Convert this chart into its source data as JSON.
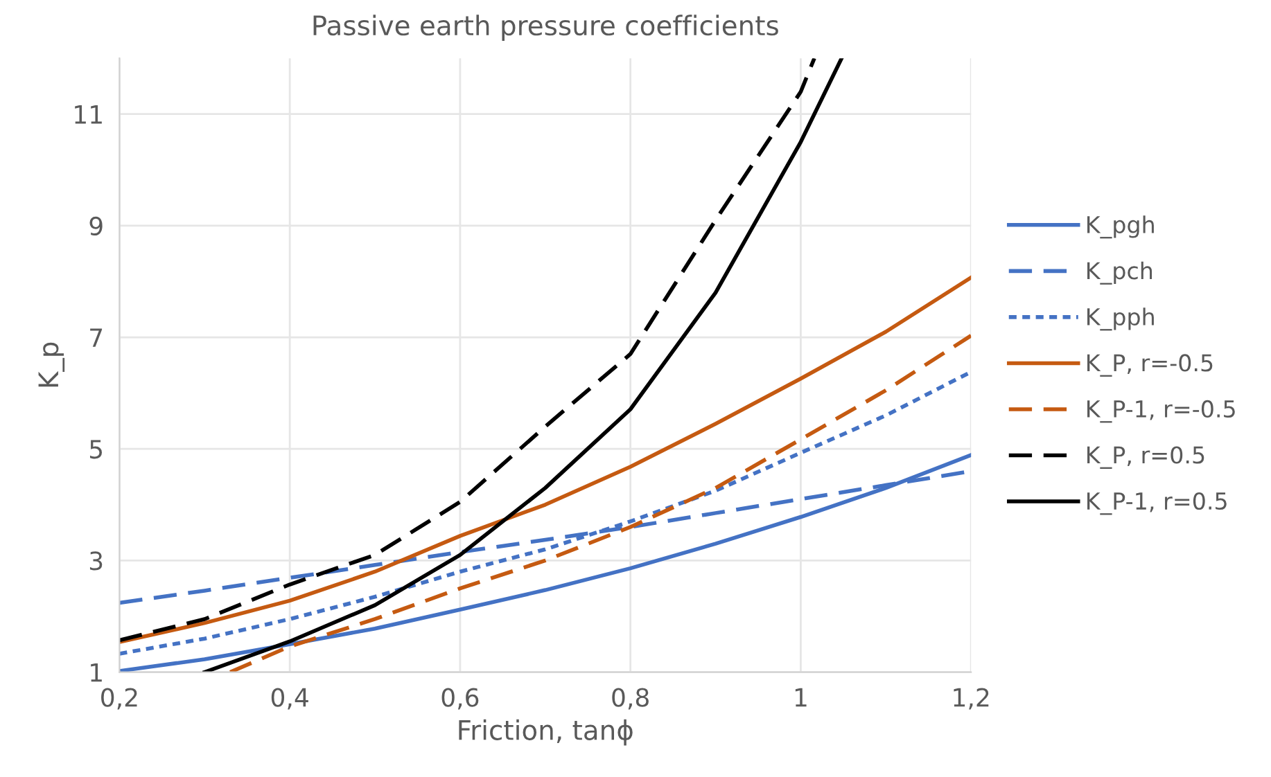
{
  "chart_data": {
    "type": "line",
    "title": "Passive earth pressure coefficients",
    "xlabel": "Friction, tanϕ",
    "ylabel": "K_p",
    "xlim": [
      0.2,
      1.2
    ],
    "xticks": [
      {
        "value": 0.2,
        "label": "0,2"
      },
      {
        "value": 0.4,
        "label": "0,4"
      },
      {
        "value": 0.6,
        "label": "0,6"
      },
      {
        "value": 0.8,
        "label": "0,8"
      },
      1,
      {
        "value": 1.2,
        "label": "1,2"
      }
    ],
    "ylim": [
      1,
      12
    ],
    "yticks": [
      1,
      3,
      5,
      7,
      9,
      11
    ],
    "grid": true,
    "legend": "right",
    "marker": "none",
    "series": [
      {
        "name": "K_pgh",
        "color": "#4472c4",
        "line_style": "solid",
        "x": [
          0.2,
          0.3,
          0.4,
          0.5,
          0.6,
          0.7,
          0.8,
          0.9,
          1.0,
          1.1,
          1.2
        ],
        "values": [
          1.02,
          1.23,
          1.5,
          1.78,
          2.12,
          2.47,
          2.86,
          3.3,
          3.78,
          4.3,
          4.89
        ]
      },
      {
        "name": "K_pch",
        "color": "#4472c4",
        "line_style": "dashed",
        "x": [
          0.2,
          0.3,
          0.4,
          0.5,
          0.6,
          0.7,
          0.8,
          0.9,
          1.0,
          1.1,
          1.2
        ],
        "values": [
          2.24,
          2.46,
          2.69,
          2.92,
          3.15,
          3.37,
          3.6,
          3.85,
          4.1,
          4.35,
          4.6
        ]
      },
      {
        "name": "K_pph",
        "color": "#4472c4",
        "line_style": "dotted",
        "x": [
          0.2,
          0.3,
          0.4,
          0.5,
          0.6,
          0.7,
          0.8,
          0.9,
          1.0,
          1.1,
          1.2
        ],
        "values": [
          1.33,
          1.6,
          1.95,
          2.35,
          2.8,
          3.2,
          3.7,
          4.25,
          4.93,
          5.6,
          6.38
        ]
      },
      {
        "name": "K_P, r=-0.5",
        "color": "#c55a11",
        "line_style": "solid",
        "x": [
          0.2,
          0.3,
          0.4,
          0.5,
          0.6,
          0.7,
          0.8,
          0.9,
          1.0,
          1.1,
          1.2
        ],
        "values": [
          1.54,
          1.88,
          2.28,
          2.8,
          3.44,
          4.0,
          4.68,
          5.45,
          6.26,
          7.1,
          8.07
        ]
      },
      {
        "name": "K_P-1, r=-0.5",
        "color": "#c55a11",
        "line_style": "dashed",
        "x": [
          0.33,
          0.4,
          0.5,
          0.6,
          0.7,
          0.8,
          0.9,
          1.0,
          1.1,
          1.2
        ],
        "values": [
          1.0,
          1.46,
          1.95,
          2.5,
          3.0,
          3.6,
          4.3,
          5.17,
          6.05,
          7.03
        ]
      },
      {
        "name": "K_P, r=0.5",
        "color": "#000000",
        "line_style": "dashed",
        "x": [
          0.2,
          0.3,
          0.4,
          0.5,
          0.6,
          0.7,
          0.8,
          0.9,
          1.0,
          1.016
        ],
        "values": [
          1.57,
          1.95,
          2.57,
          3.1,
          4.05,
          5.4,
          6.7,
          9.1,
          11.4,
          12.0
        ]
      },
      {
        "name": "K_P-1, r=0.5",
        "color": "#000000",
        "line_style": "solid",
        "x": [
          0.3,
          0.4,
          0.5,
          0.6,
          0.7,
          0.8,
          0.9,
          1.0,
          1.048
        ],
        "values": [
          1.0,
          1.55,
          2.2,
          3.1,
          4.3,
          5.71,
          7.8,
          10.5,
          12.0
        ]
      }
    ]
  }
}
